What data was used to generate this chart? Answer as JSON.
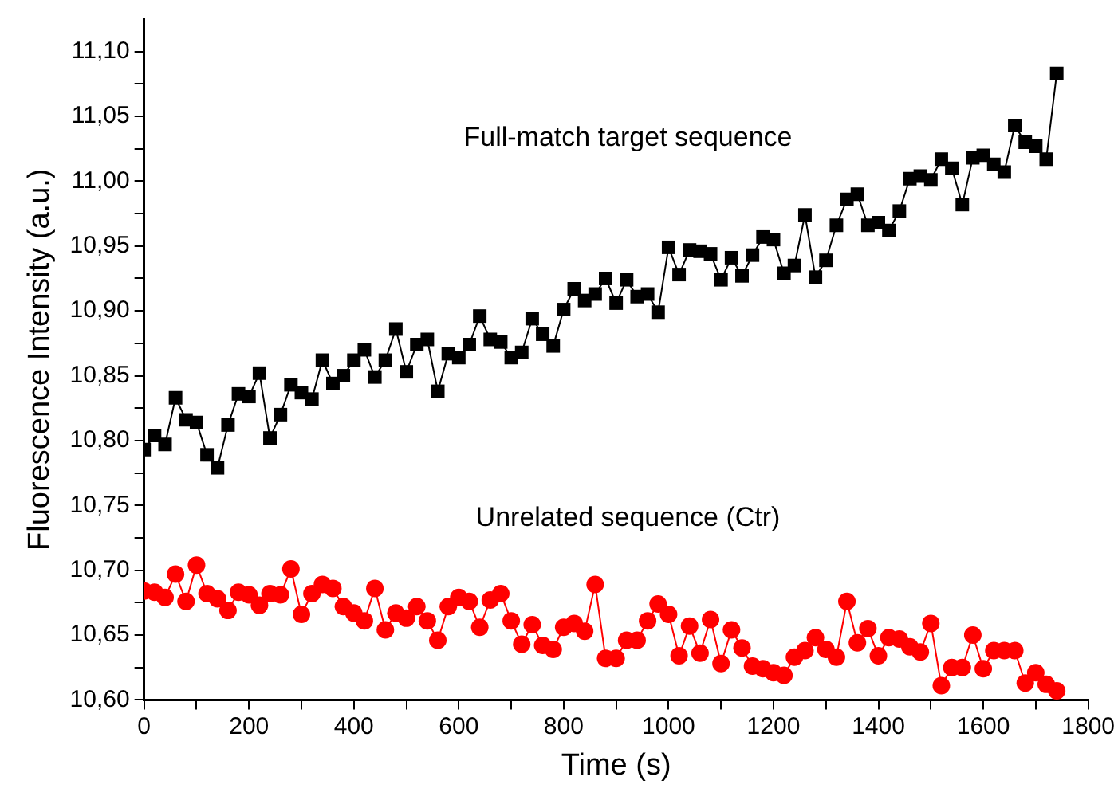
{
  "chart_data": {
    "type": "line",
    "xlabel": "Time (s)",
    "ylabel": "Fluorescence Intensity (a.u.)",
    "x": [
      0,
      20,
      40,
      60,
      80,
      100,
      120,
      140,
      160,
      180,
      200,
      220,
      240,
      260,
      280,
      300,
      320,
      340,
      360,
      380,
      400,
      420,
      440,
      460,
      480,
      500,
      520,
      540,
      560,
      580,
      600,
      620,
      640,
      660,
      680,
      700,
      720,
      740,
      760,
      780,
      800,
      820,
      840,
      860,
      880,
      900,
      920,
      940,
      960,
      980,
      1000,
      1020,
      1040,
      1060,
      1080,
      1100,
      1120,
      1140,
      1160,
      1180,
      1200,
      1220,
      1240,
      1260,
      1280,
      1300,
      1320,
      1340,
      1360,
      1380,
      1400,
      1420,
      1440,
      1460,
      1480,
      1500,
      1520,
      1540,
      1560,
      1580,
      1600,
      1620,
      1640,
      1660,
      1680,
      1700,
      1720,
      1740
    ],
    "series": [
      {
        "name": "Full-match target sequence",
        "color": "#000000",
        "marker": "square",
        "values": [
          10.793,
          10.804,
          10.797,
          10.833,
          10.816,
          10.814,
          10.789,
          10.779,
          10.812,
          10.836,
          10.834,
          10.852,
          10.802,
          10.82,
          10.843,
          10.837,
          10.832,
          10.862,
          10.844,
          10.85,
          10.862,
          10.87,
          10.849,
          10.862,
          10.886,
          10.853,
          10.874,
          10.878,
          10.838,
          10.867,
          10.864,
          10.874,
          10.896,
          10.878,
          10.876,
          10.864,
          10.868,
          10.894,
          10.882,
          10.873,
          10.901,
          10.917,
          10.908,
          10.913,
          10.925,
          10.906,
          10.924,
          10.911,
          10.913,
          10.899,
          10.949,
          10.928,
          10.947,
          10.946,
          10.944,
          10.924,
          10.941,
          10.927,
          10.943,
          10.957,
          10.955,
          10.929,
          10.935,
          10.974,
          10.926,
          10.939,
          10.966,
          10.986,
          10.99,
          10.966,
          10.968,
          10.962,
          10.977,
          11.002,
          11.004,
          11.001,
          11.017,
          11.01,
          10.982,
          11.018,
          11.02,
          11.013,
          11.007,
          11.043,
          11.03,
          11.027,
          11.017,
          11.083
        ]
      },
      {
        "name": "Unrelated sequence (Ctr)",
        "color": "#ff0000",
        "marker": "circle",
        "values": [
          10.684,
          10.683,
          10.679,
          10.697,
          10.676,
          10.704,
          10.682,
          10.678,
          10.669,
          10.683,
          10.681,
          10.673,
          10.682,
          10.681,
          10.701,
          10.666,
          10.682,
          10.689,
          10.686,
          10.672,
          10.667,
          10.661,
          10.686,
          10.654,
          10.667,
          10.663,
          10.672,
          10.661,
          10.646,
          10.672,
          10.679,
          10.676,
          10.656,
          10.677,
          10.682,
          10.661,
          10.643,
          10.658,
          10.642,
          10.639,
          10.656,
          10.659,
          10.653,
          10.689,
          10.632,
          10.632,
          10.646,
          10.646,
          10.661,
          10.674,
          10.666,
          10.634,
          10.657,
          10.636,
          10.662,
          10.628,
          10.654,
          10.64,
          10.626,
          10.624,
          10.621,
          10.619,
          10.633,
          10.638,
          10.648,
          10.639,
          10.633,
          10.676,
          10.644,
          10.655,
          10.634,
          10.648,
          10.647,
          10.641,
          10.637,
          10.659,
          10.611,
          10.625,
          10.625,
          10.65,
          10.624,
          10.638,
          10.638,
          10.638,
          10.613,
          10.621,
          10.612,
          10.607
        ]
      }
    ],
    "xlim": [
      0,
      1800
    ],
    "xticks": [
      0,
      {
        "value": 100,
        "label": null
      },
      200,
      {
        "value": 300,
        "label": null
      },
      400,
      {
        "value": 500,
        "label": null
      },
      600,
      {
        "value": 700,
        "label": null
      },
      800,
      {
        "value": 900,
        "label": null
      },
      1000,
      {
        "value": 1100,
        "label": null
      },
      1200,
      {
        "value": 1300,
        "label": null
      },
      1400,
      {
        "value": 1500,
        "label": null
      },
      1600,
      {
        "value": 1700,
        "label": null
      },
      1800
    ],
    "ylim": [
      10.6,
      11.125
    ],
    "yticks": [
      {
        "value": 10.6,
        "label": "10,60"
      },
      {
        "value": 10.625,
        "label": null
      },
      {
        "value": 10.65,
        "label": "10,65"
      },
      {
        "value": 10.675,
        "label": null
      },
      {
        "value": 10.7,
        "label": "10,70"
      },
      {
        "value": 10.725,
        "label": null
      },
      {
        "value": 10.75,
        "label": "10,75"
      },
      {
        "value": 10.775,
        "label": null
      },
      {
        "value": 10.8,
        "label": "10,80"
      },
      {
        "value": 10.825,
        "label": null
      },
      {
        "value": 10.85,
        "label": "10,85"
      },
      {
        "value": 10.875,
        "label": null
      },
      {
        "value": 10.9,
        "label": "10,90"
      },
      {
        "value": 10.925,
        "label": null
      },
      {
        "value": 10.95,
        "label": "10,95"
      },
      {
        "value": 10.975,
        "label": null
      },
      {
        "value": 11.0,
        "label": "11,00"
      },
      {
        "value": 11.025,
        "label": null
      },
      {
        "value": 11.05,
        "label": "11,05"
      },
      {
        "value": 11.075,
        "label": null
      },
      {
        "value": 11.1,
        "label": "11,10"
      }
    ],
    "grid": false,
    "legend": false,
    "line_style": "solid"
  }
}
